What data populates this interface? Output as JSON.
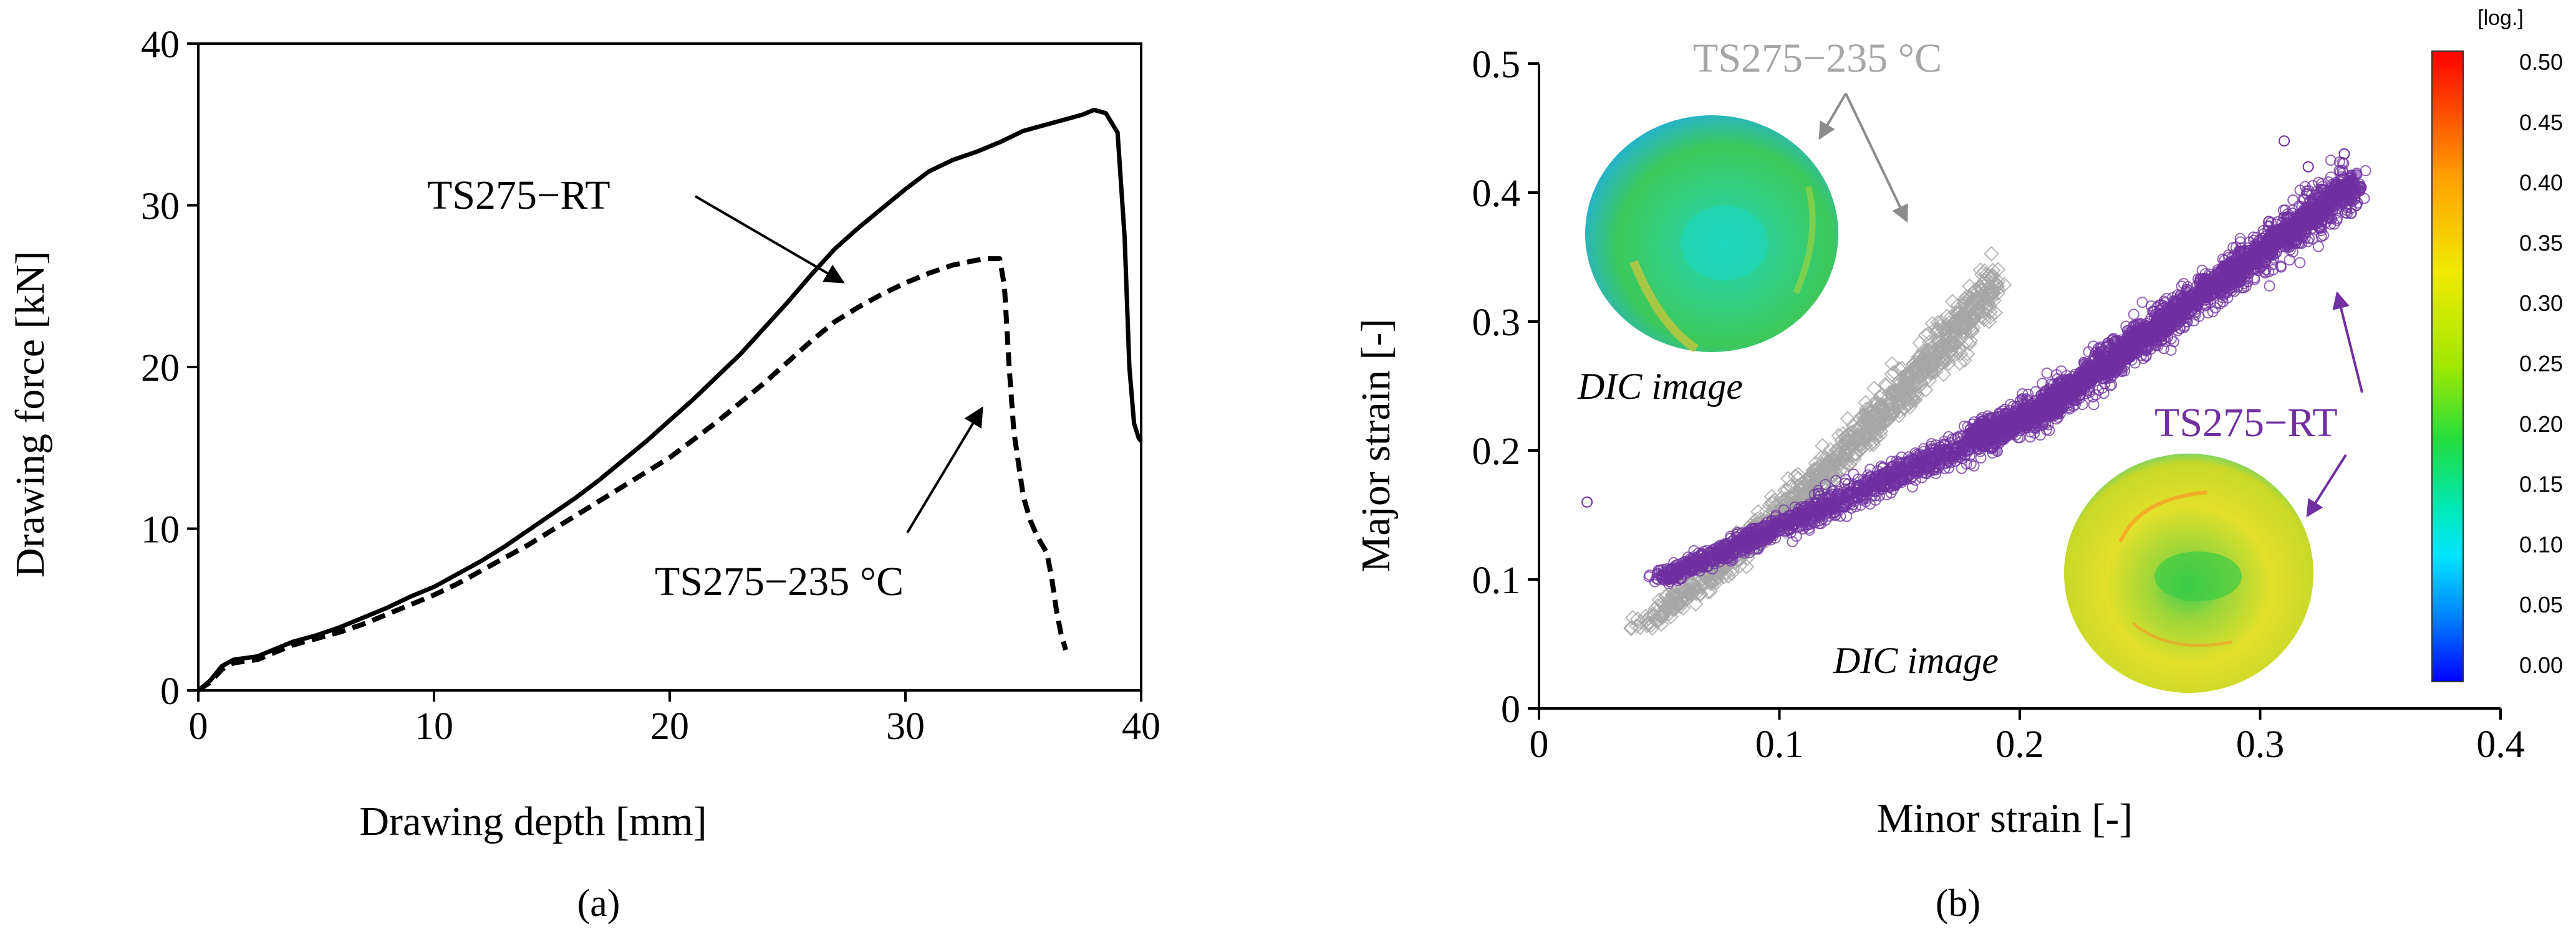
{
  "chart_data": [
    {
      "panel": "a",
      "type": "line",
      "panel_label": "(a)",
      "xlabel": "Drawing depth [mm]",
      "ylabel": "Drawing force [kN]",
      "xlim": [
        0,
        40
      ],
      "ylim": [
        0,
        40
      ],
      "xticks": [
        0,
        10,
        20,
        30,
        40
      ],
      "yticks": [
        0,
        10,
        20,
        30,
        40
      ],
      "grid": false,
      "series": [
        {
          "name": "TS275−RT",
          "style": "solid",
          "x": [
            0,
            0.5,
            1,
            1.5,
            2,
            2.5,
            3,
            4,
            5,
            6,
            7,
            8,
            9,
            10,
            11,
            12,
            13,
            14,
            15,
            16,
            17,
            18,
            19,
            20,
            21,
            22,
            23,
            24,
            25,
            26,
            27,
            28,
            29,
            30,
            31,
            32,
            33,
            34,
            35,
            36,
            37,
            37.5,
            38,
            38.5,
            39,
            39.3,
            39.5,
            39.7,
            39.9,
            40
          ],
          "y": [
            0,
            0.6,
            1.5,
            1.9,
            2.0,
            2.1,
            2.4,
            3.0,
            3.4,
            3.9,
            4.5,
            5.1,
            5.8,
            6.4,
            7.2,
            8.0,
            8.9,
            9.9,
            10.9,
            11.9,
            13.0,
            14.2,
            15.4,
            16.7,
            18.0,
            19.4,
            20.8,
            22.4,
            24.0,
            25.7,
            27.3,
            28.6,
            29.8,
            31.0,
            32.1,
            32.8,
            33.3,
            33.9,
            34.6,
            35.0,
            35.4,
            35.6,
            35.9,
            35.7,
            34.5,
            28.0,
            20.0,
            16.5,
            15.6,
            15.4
          ]
        },
        {
          "name": "TS275−235 °C",
          "style": "dashed",
          "x": [
            0,
            0.5,
            1,
            1.5,
            2,
            2.5,
            3,
            4,
            5,
            6,
            7,
            8,
            9,
            10,
            11,
            12,
            13,
            14,
            15,
            16,
            17,
            18,
            19,
            20,
            21,
            22,
            23,
            24,
            25,
            26,
            27,
            28,
            29,
            30,
            31,
            32,
            33,
            33.5,
            34,
            34.2,
            34.4,
            34.6,
            34.8,
            35,
            35.3,
            35.6,
            36,
            36.2,
            36.4,
            36.6,
            36.8
          ],
          "y": [
            0,
            0.5,
            1.3,
            1.7,
            1.8,
            1.9,
            2.2,
            2.8,
            3.2,
            3.6,
            4.1,
            4.7,
            5.3,
            5.9,
            6.6,
            7.4,
            8.2,
            9.0,
            9.9,
            10.8,
            11.7,
            12.6,
            13.5,
            14.4,
            15.5,
            16.6,
            17.8,
            19.0,
            20.3,
            21.6,
            22.8,
            23.7,
            24.5,
            25.2,
            25.8,
            26.3,
            26.6,
            26.7,
            26.7,
            25.0,
            20.0,
            16.0,
            14.0,
            12.0,
            10.5,
            9.5,
            8.5,
            7.0,
            5.0,
            3.5,
            2.5
          ]
        }
      ],
      "annotations": [
        {
          "text": "TS275−RT",
          "target_x": 27.0,
          "target_y": 25.3
        },
        {
          "text": "TS275−235 °C",
          "target_x": 33.0,
          "target_y": 18.0
        }
      ]
    },
    {
      "panel": "b",
      "type": "scatter",
      "panel_label": "(b)",
      "xlabel": "Minor strain [-]",
      "ylabel": "Major strain [-]",
      "xlim": [
        0,
        0.4
      ],
      "ylim": [
        0,
        0.5
      ],
      "xticks": [
        0,
        0.1,
        0.2,
        0.3,
        0.4
      ],
      "yticks": [
        0,
        0.1,
        0.2,
        0.3,
        0.4,
        0.5
      ],
      "xtick_labels": [
        "0",
        "0.1",
        "0.2",
        "0.3",
        "0.4"
      ],
      "ytick_labels": [
        "0",
        "0.1",
        "0.2",
        "0.3",
        "0.4",
        "0.5"
      ],
      "grid": false,
      "series": [
        {
          "name": "TS275−235 °C",
          "marker": "diamond",
          "color": "#a6a6a6",
          "note": "dense point cloud; trend from (0.04, 0.06) to (0.19, 0.36)",
          "x_range": [
            0.04,
            0.19
          ],
          "y_range": [
            0.06,
            0.36
          ]
        },
        {
          "name": "TS275−RT",
          "marker": "circle",
          "color": "#7030a0",
          "note": "dense point cloud; trend from (0.05, 0.10) to (0.34, 0.44)",
          "x_range": [
            0.02,
            0.345
          ],
          "y_range": [
            0.09,
            0.44
          ]
        }
      ],
      "annotations": [
        {
          "text": "TS275−235 °C",
          "color": "#a6a6a6"
        },
        {
          "text": "TS275−RT",
          "color": "#7030a0"
        },
        {
          "text": "DIC image"
        },
        {
          "text": "DIC image"
        }
      ],
      "colorbar": {
        "title": "[log.]",
        "ticks": [
          "0.50",
          "0.45",
          "0.40",
          "0.35",
          "0.30",
          "0.25",
          "0.20",
          "0.15",
          "0.10",
          "0.05",
          "0.00"
        ],
        "colors": [
          "#ff0000",
          "#ff6a00",
          "#ffcc00",
          "#e6e600",
          "#aaee00",
          "#33dd33",
          "#00ee88",
          "#00eeee",
          "#00aaff",
          "#0055ff",
          "#0000ff"
        ]
      }
    }
  ]
}
